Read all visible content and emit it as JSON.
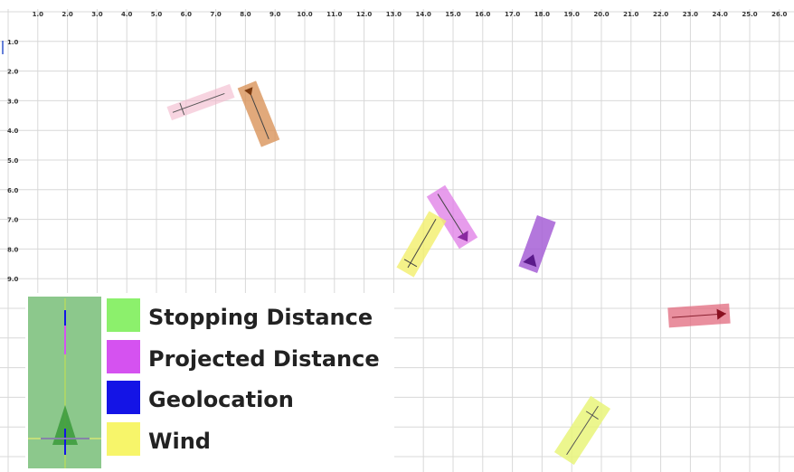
{
  "grid": {
    "x_ticks": [
      "1.0",
      "2.0",
      "3.0",
      "4.0",
      "5.0",
      "6.0",
      "7.0",
      "8.0",
      "9.0",
      "10.0",
      "11.0",
      "12.0",
      "13.0",
      "14.0",
      "15.0",
      "16.0",
      "17.0",
      "18.0",
      "19.0",
      "20.0",
      "21.0",
      "22.0",
      "23.0",
      "24.0",
      "25.0",
      "26.0"
    ],
    "y_ticks": [
      "1.0",
      "2.0",
      "3.0",
      "4.0",
      "5.0",
      "6.0",
      "7.0",
      "8.0",
      "9.0"
    ],
    "line_color": "#d8d8d8"
  },
  "objects": [
    {
      "name": "pink-vehicle",
      "color": "#f2b8cc"
    },
    {
      "name": "orange-vehicle",
      "color": "#d9945a"
    },
    {
      "name": "magenta-vehicle",
      "color": "#df7be6"
    },
    {
      "name": "yellow-vehicle",
      "color": "#f3ef6c"
    },
    {
      "name": "purple-vehicle",
      "color": "#a65fd6"
    },
    {
      "name": "red-vehicle",
      "color": "#e2697e"
    },
    {
      "name": "lime-vehicle",
      "color": "#e9f47a"
    }
  ],
  "legend": {
    "preview_color": "#8cc88c",
    "items": [
      {
        "label": "Stopping Distance",
        "color": "#8cf06c"
      },
      {
        "label": "Projected Distance",
        "color": "#d552f0"
      },
      {
        "label": "Geolocation",
        "color": "#1414e6"
      },
      {
        "label": "Wind",
        "color": "#f7f56a"
      }
    ]
  }
}
